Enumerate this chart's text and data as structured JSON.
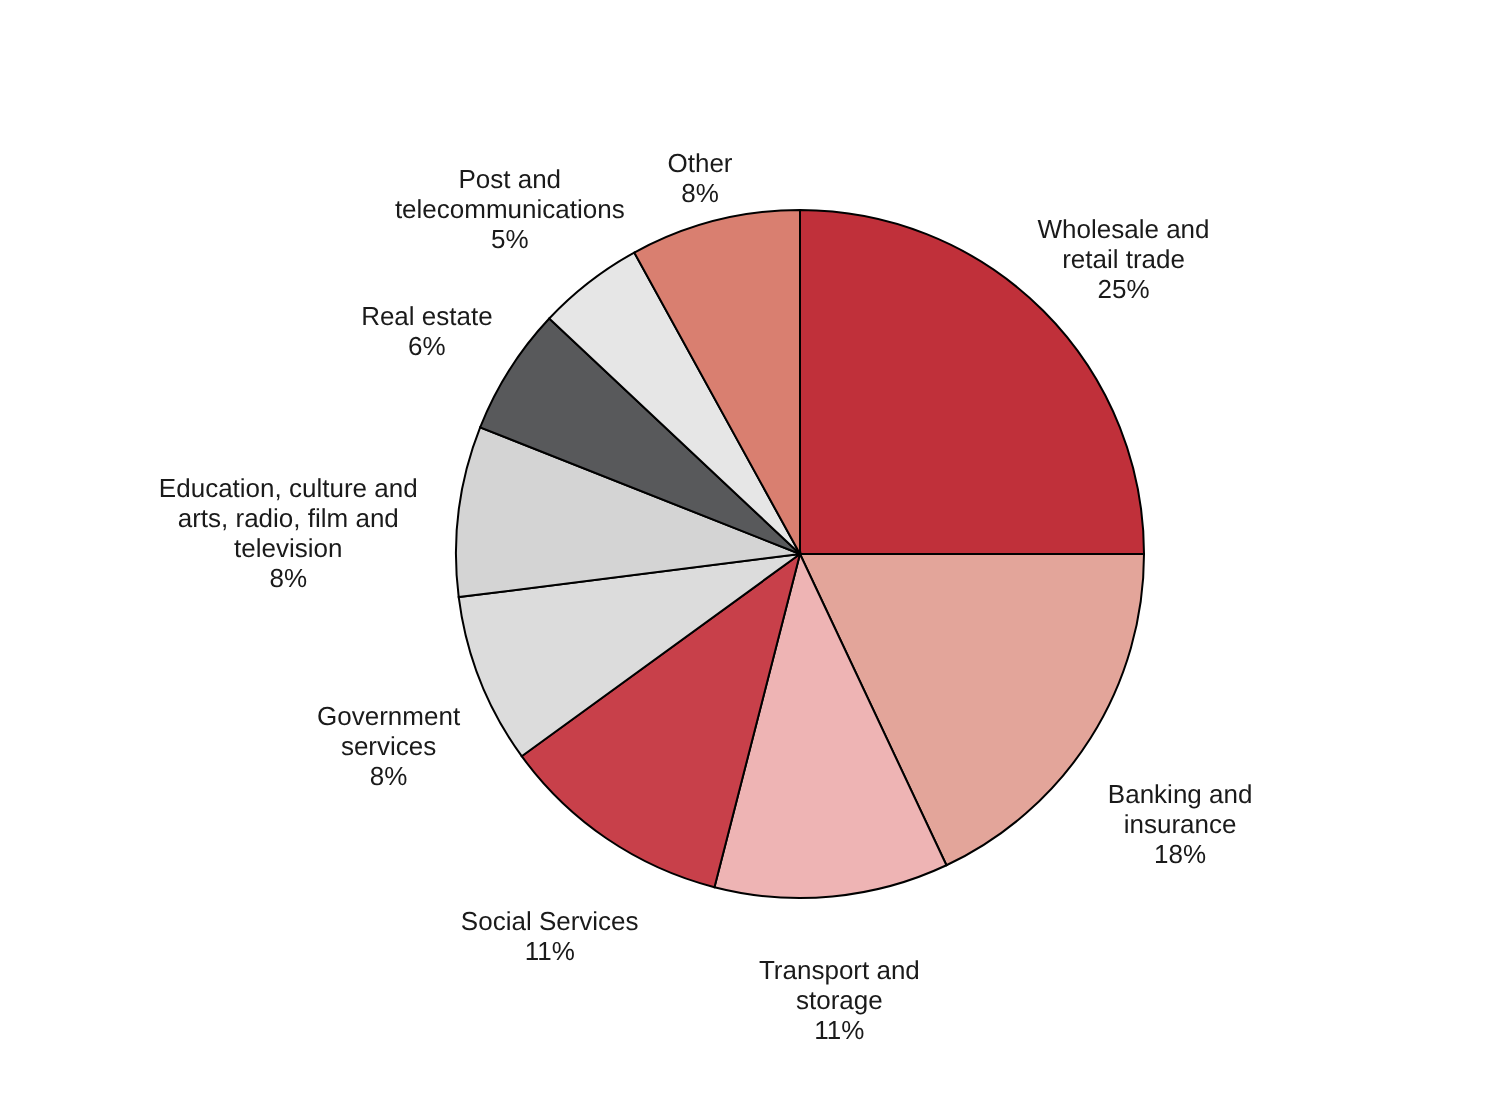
{
  "chart_data": {
    "type": "pie",
    "categories": [
      "Wholesale and retail trade",
      "Banking and insurance",
      "Transport and storage",
      "Social Services",
      "Government services",
      "Education, culture and arts, radio, film and television",
      "Real estate",
      "Post and telecommunications",
      "Other"
    ],
    "values": [
      25,
      18,
      11,
      11,
      8,
      8,
      6,
      5,
      8
    ],
    "value_labels": [
      "25%",
      "18%",
      "11%",
      "11%",
      "8%",
      "8%",
      "6%",
      "5%",
      "8%"
    ],
    "colors": [
      "#c0303a",
      "#e3a59a",
      "#eeb4b4",
      "#c8404a",
      "#dcdcdc",
      "#d4d4d4",
      "#58595b",
      "#e6e6e6",
      "#d97f70"
    ],
    "legend": false
  }
}
